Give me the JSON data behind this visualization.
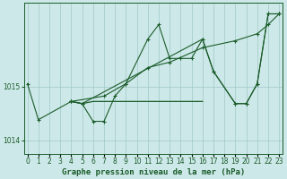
{
  "background_color": "#cde8e8",
  "grid_color": "#a0c8c8",
  "line_color": "#1a5c2a",
  "hours": [
    0,
    1,
    2,
    3,
    4,
    5,
    6,
    7,
    8,
    9,
    10,
    11,
    12,
    13,
    14,
    15,
    16,
    17,
    18,
    19,
    20,
    21,
    22,
    23
  ],
  "ylim_min": 1013.75,
  "ylim_max": 1016.55,
  "yticks": [
    1014.0,
    1015.0
  ],
  "xlabel": "Graphe pression niveau de la mer (hPa)",
  "label_fontsize": 6.5,
  "tick_fontsize": 5.5,
  "s1_x": [
    0,
    1,
    4,
    5,
    6,
    7,
    8,
    9,
    11,
    12,
    13,
    14,
    15,
    16,
    17,
    19,
    20,
    21,
    22,
    23
  ],
  "s1_y": [
    1015.05,
    1014.38,
    1014.72,
    1014.68,
    1014.35,
    1014.35,
    1014.82,
    1015.05,
    1015.88,
    1016.15,
    1015.52,
    1015.52,
    1015.52,
    1015.88,
    1015.28,
    1014.68,
    1014.68,
    1015.05,
    1016.35,
    1016.35
  ],
  "s2_x": [
    4,
    5,
    6,
    7,
    8,
    9,
    10,
    11,
    12,
    13,
    14,
    15,
    16
  ],
  "s2_y": [
    1014.72,
    1014.68,
    1014.72,
    1014.72,
    1014.72,
    1014.72,
    1014.72,
    1014.72,
    1014.72,
    1014.72,
    1014.72,
    1014.72,
    1014.72
  ],
  "s3_x": [
    4,
    7,
    9,
    11,
    13,
    16,
    19,
    21,
    22,
    23
  ],
  "s3_y": [
    1014.72,
    1014.82,
    1015.05,
    1015.35,
    1015.45,
    1015.72,
    1015.85,
    1015.98,
    1016.15,
    1016.35
  ],
  "s4_x": [
    4,
    5,
    16,
    17,
    19,
    20,
    21,
    22,
    23
  ],
  "s4_y": [
    1014.72,
    1014.68,
    1015.88,
    1015.28,
    1014.68,
    1014.68,
    1015.05,
    1016.35,
    1016.35
  ]
}
